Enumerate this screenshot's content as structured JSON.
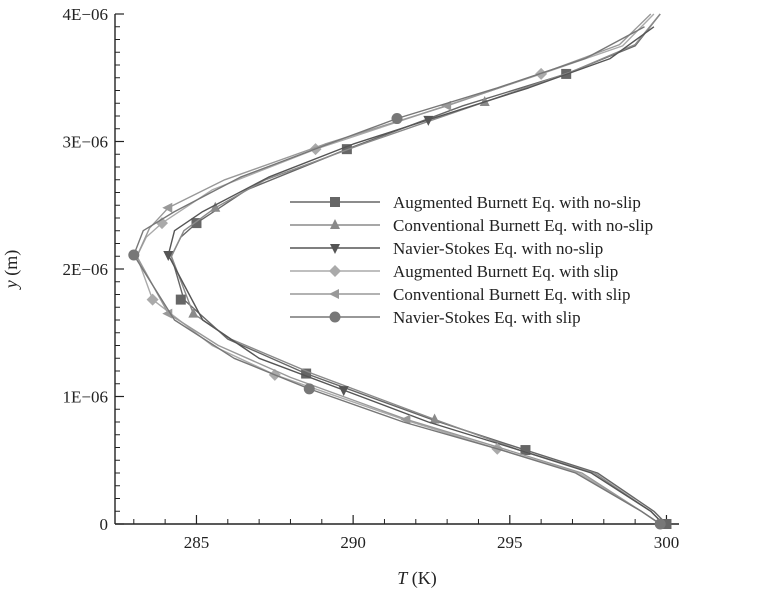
{
  "chart_data": {
    "type": "line",
    "xlabel": {
      "italic": "T",
      "rest": " (K)"
    },
    "ylabel": {
      "italic": "y",
      "rest": " (m)"
    },
    "xlim": [
      282.4,
      300.4
    ],
    "ylim": [
      0,
      4e-06
    ],
    "x_ticks": [
      285,
      290,
      295,
      300
    ],
    "x_tick_labels": [
      "285",
      "290",
      "295",
      "300"
    ],
    "y_ticks": [
      0,
      1e-06,
      2e-06,
      3e-06,
      4e-06
    ],
    "y_tick_labels": [
      "0",
      "1E−06",
      "2E−06",
      "3E−06",
      "4E−06"
    ],
    "grid": false,
    "legend_position": "center-right",
    "series": [
      {
        "name": "Augmented Burnett Eq. with no-slip",
        "marker": "square",
        "color": "#666666",
        "x": [
          300.0,
          299.6,
          297.8,
          295.5,
          292.5,
          288.5,
          286.0,
          284.6,
          284.2,
          284.5,
          285.0,
          286.6,
          289.8,
          293.5,
          296.8,
          299.0,
          299.8
        ],
        "y": [
          0,
          1e-07,
          4e-07,
          5.8e-07,
          8.2e-07,
          1.18e-06,
          1.45e-06,
          1.76e-06,
          2.1e-06,
          2.25e-06,
          2.36e-06,
          2.62e-06,
          2.94e-06,
          3.28e-06,
          3.53e-06,
          3.75e-06,
          4e-06
        ],
        "marker_x": [
          300.0,
          295.5,
          288.5,
          284.5,
          285.0,
          289.8,
          296.8
        ],
        "marker_y": [
          0,
          5.8e-07,
          1.18e-06,
          1.76e-06,
          2.36e-06,
          2.94e-06,
          3.53e-06
        ]
      },
      {
        "name": "Conventional Burnett Eq. with no-slip",
        "marker": "triangle-up",
        "color": "#8a8a8a",
        "x": [
          299.9,
          299.5,
          297.7,
          295.3,
          292.6,
          288.7,
          286.1,
          284.9,
          284.2,
          284.6,
          285.6,
          287.2,
          290.3,
          294.2,
          297.0,
          299.0,
          299.8
        ],
        "y": [
          0,
          1e-07,
          4e-07,
          5.8e-07,
          8.2e-07,
          1.18e-06,
          1.45e-06,
          1.65e-06,
          2.1e-06,
          2.3e-06,
          2.48e-06,
          2.7e-06,
          2.98e-06,
          3.31e-06,
          3.55e-06,
          3.76e-06,
          4e-06
        ],
        "marker_x": [
          292.6,
          284.9,
          285.6,
          294.2
        ],
        "marker_y": [
          8.2e-07,
          1.65e-06,
          2.48e-06,
          3.31e-06
        ]
      },
      {
        "name": "Navier-Stokes Eq. with no-slip",
        "marker": "triangle-down",
        "color": "#555555",
        "x": [
          299.9,
          299.5,
          297.6,
          295.3,
          292.4,
          289.7,
          287.0,
          285.2,
          284.1,
          284.3,
          285.2,
          287.3,
          290.0,
          292.4,
          295.6,
          298.2,
          299.6
        ],
        "y": [
          0,
          1e-07,
          4e-07,
          5.8e-07,
          8e-07,
          1.05e-06,
          1.3e-06,
          1.6e-06,
          2.11e-06,
          2.3e-06,
          2.45e-06,
          2.72e-06,
          2.98e-06,
          3.17e-06,
          3.42e-06,
          3.65e-06,
          3.9e-06
        ],
        "marker_x": [
          289.7,
          284.1,
          292.4
        ],
        "marker_y": [
          1.05e-06,
          2.11e-06,
          3.17e-06
        ]
      },
      {
        "name": "Augmented Burnett Eq. with slip",
        "marker": "diamond",
        "color": "#aaaaaa",
        "x": [
          299.8,
          299.2,
          297.2,
          294.6,
          291.6,
          287.5,
          285.5,
          283.6,
          283.1,
          283.4,
          283.9,
          285.5,
          288.8,
          292.6,
          296.0,
          298.6,
          299.6
        ],
        "y": [
          0,
          1e-07,
          4e-07,
          5.9e-07,
          8.2e-07,
          1.17e-06,
          1.4e-06,
          1.76e-06,
          2.1e-06,
          2.25e-06,
          2.36e-06,
          2.62e-06,
          2.94e-06,
          3.25e-06,
          3.53e-06,
          3.75e-06,
          4e-06
        ],
        "marker_x": [
          294.6,
          287.5,
          283.6,
          283.9,
          288.8,
          296.0
        ],
        "marker_y": [
          5.9e-07,
          1.17e-06,
          1.76e-06,
          2.36e-06,
          2.94e-06,
          3.53e-06
        ]
      },
      {
        "name": "Conventional Burnett Eq. with slip",
        "marker": "triangle-left",
        "color": "#999999",
        "x": [
          299.8,
          299.2,
          297.3,
          294.8,
          291.7,
          288.0,
          285.7,
          284.1,
          283.1,
          283.5,
          284.1,
          285.9,
          289.1,
          293.0,
          296.2,
          298.5,
          299.5
        ],
        "y": [
          0,
          1e-07,
          4e-07,
          5.9e-07,
          8.2e-07,
          1.15e-06,
          1.4e-06,
          1.65e-06,
          2.1e-06,
          2.32e-06,
          2.48e-06,
          2.7e-06,
          2.98e-06,
          3.28e-06,
          3.55e-06,
          3.76e-06,
          4e-06
        ],
        "marker_x": [
          291.7,
          284.1,
          284.1,
          293.0
        ],
        "marker_y": [
          8.2e-07,
          1.65e-06,
          2.48e-06,
          3.28e-06
        ]
      },
      {
        "name": "Navier-Stokes Eq. with slip",
        "marker": "circle",
        "color": "#777777",
        "x": [
          299.8,
          299.2,
          297.1,
          294.6,
          291.6,
          288.6,
          286.2,
          284.3,
          283.0,
          283.3,
          284.3,
          286.4,
          289.2,
          291.4,
          294.6,
          297.4,
          299.3
        ],
        "y": [
          0,
          1e-07,
          4e-07,
          5.9e-07,
          8e-07,
          1.06e-06,
          1.3e-06,
          1.6e-06,
          2.11e-06,
          2.3e-06,
          2.45e-06,
          2.72e-06,
          2.98e-06,
          3.18e-06,
          3.42e-06,
          3.65e-06,
          3.9e-06
        ],
        "marker_x": [
          299.8,
          288.6,
          283.0,
          291.4
        ],
        "marker_y": [
          0,
          1.06e-06,
          2.11e-06,
          3.18e-06
        ]
      }
    ]
  }
}
